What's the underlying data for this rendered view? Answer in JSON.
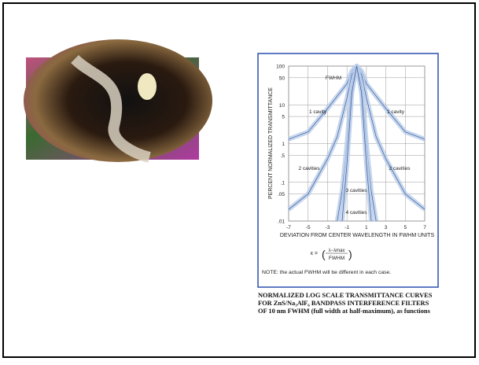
{
  "chart_data": {
    "type": "line",
    "y_label": "PERCENT NORMALIZED TRANSMITTANCE",
    "x_label": "DEVIATION FROM CENTER WAVELENGTH IN FWHM UNITS",
    "annotation": "FWHM",
    "formula": {
      "lhs": "x =",
      "numerator": "λ−λmax",
      "denominator": "FWHM"
    },
    "note": "NOTE: the actual FWHM will be different in each case.",
    "caption": [
      "NORMALIZED LOG SCALE TRANSMITTANCE CURVES",
      "FOR ZnS/Na₃AlF₆ BANDPASS INTERFERENCE FILTERS",
      "OF 10 nm FWHM (full width at half-maximum), as functions"
    ],
    "xlim": [
      -7,
      7
    ],
    "xticks": [
      -7,
      -5,
      -3,
      -1,
      1,
      3,
      5,
      7
    ],
    "ylim": [
      0.01,
      100
    ],
    "log_y": true,
    "grid": true,
    "yticks": [
      100,
      50,
      10,
      5,
      1,
      {
        "value": 0.5,
        "label": ".5"
      },
      {
        "value": 0.1,
        "label": ".1"
      },
      {
        "value": 0.05,
        "label": ".05"
      },
      {
        "value": 0.01,
        "label": ".01"
      }
    ],
    "series": [
      {
        "name": "1 cavity",
        "color": "#b9cdea",
        "x": [
          -7,
          -5,
          -3,
          -1,
          -0.5,
          0,
          0.5,
          1,
          3,
          5,
          7
        ],
        "values": [
          1.3,
          2,
          8,
          35,
          75,
          100,
          75,
          35,
          8,
          2,
          1.3
        ]
      },
      {
        "name": "2 cavities",
        "color": "#b9cdea",
        "x": [
          -7,
          -5,
          -3,
          -2,
          -1,
          -0.5,
          0,
          0.5,
          1,
          2,
          3,
          5,
          7
        ],
        "values": [
          0.02,
          0.05,
          0.4,
          1.5,
          15,
          60,
          100,
          60,
          15,
          1.5,
          0.4,
          0.05,
          0.02
        ]
      },
      {
        "name": "3 cavities",
        "color": "#b9cdea",
        "x": [
          -2,
          -1.5,
          -1,
          -0.5,
          0,
          0.5,
          1,
          1.5,
          2
        ],
        "values": [
          0.01,
          0.06,
          1,
          30,
          100,
          30,
          1,
          0.06,
          0.01
        ]
      },
      {
        "name": "4 cavities",
        "color": "#b9cdea",
        "x": [
          -1.5,
          -1,
          -0.5,
          0,
          0.5,
          1,
          1.5
        ],
        "values": [
          0.01,
          0.3,
          20,
          100,
          20,
          0.3,
          0.01
        ]
      }
    ]
  }
}
